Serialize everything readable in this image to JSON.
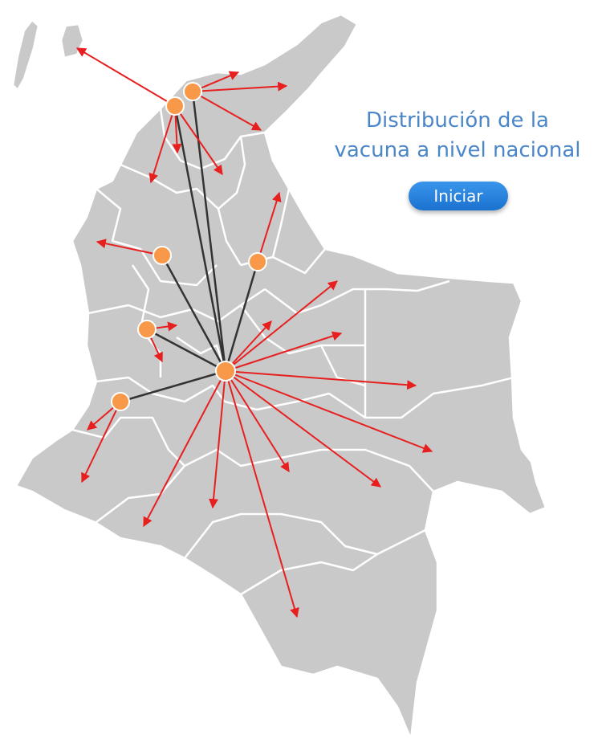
{
  "title": {
    "line1": "Distribución de la",
    "line2": "vacuna a nivel nacional"
  },
  "start_button": {
    "label": "Iniciar"
  },
  "colors": {
    "map_fill": "#c9c9c9",
    "borders": "#ffffff",
    "distribution_route": "#e81f1f",
    "hub_link": "#333333",
    "hub": "#f8994a",
    "title": "#4a86c8",
    "button": "#1f7fdc"
  },
  "map": {
    "country": "Colombia",
    "central_hub": "Bogotá"
  }
}
